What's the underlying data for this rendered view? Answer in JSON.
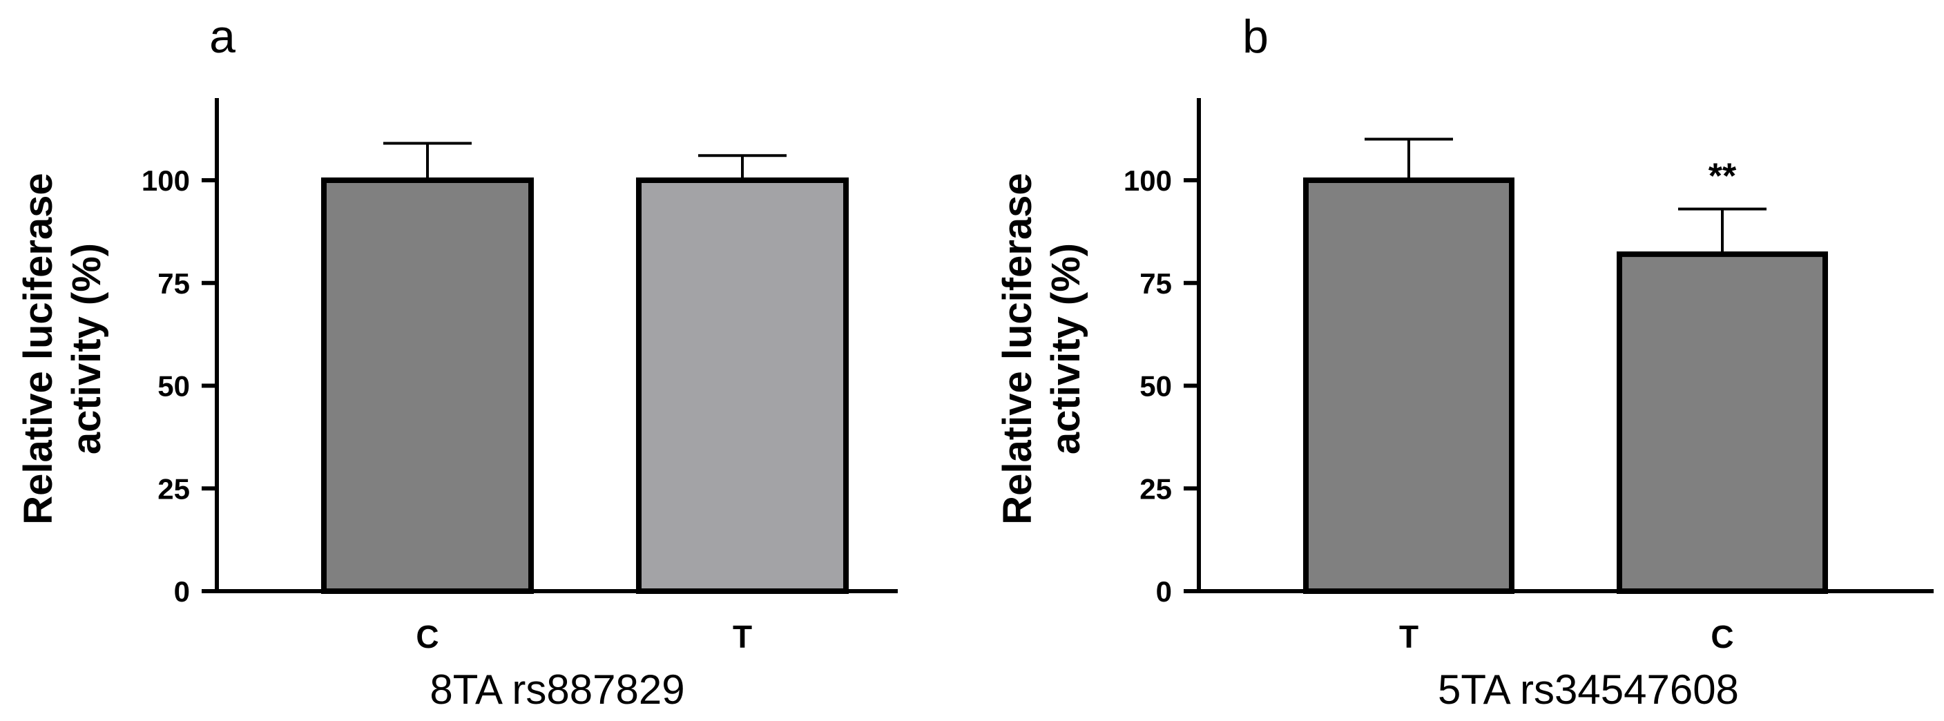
{
  "chart_data": [
    {
      "type": "bar",
      "panel": "a",
      "ylabel_line1": "Relative luciferase",
      "ylabel_line2": "activity (%)",
      "xlabel": "8TA rs887829",
      "categories": [
        "C",
        "T"
      ],
      "values": [
        100,
        100
      ],
      "errors": [
        9,
        6
      ],
      "colors": [
        "#808080",
        "#a3a3a6"
      ],
      "annotations": [
        "",
        ""
      ],
      "yticks": [
        0,
        25,
        50,
        75,
        100
      ],
      "ylim": [
        0,
        120
      ]
    },
    {
      "type": "bar",
      "panel": "b",
      "ylabel_line1": "Relative luciferase",
      "ylabel_line2": "activity (%)",
      "xlabel": "5TA rs34547608",
      "categories": [
        "T",
        "C"
      ],
      "values": [
        100,
        82
      ],
      "errors": [
        10,
        11
      ],
      "colors": [
        "#808080",
        "#808080"
      ],
      "annotations": [
        "",
        "**"
      ],
      "yticks": [
        0,
        25,
        50,
        75,
        100
      ],
      "ylim": [
        0,
        120
      ]
    }
  ]
}
